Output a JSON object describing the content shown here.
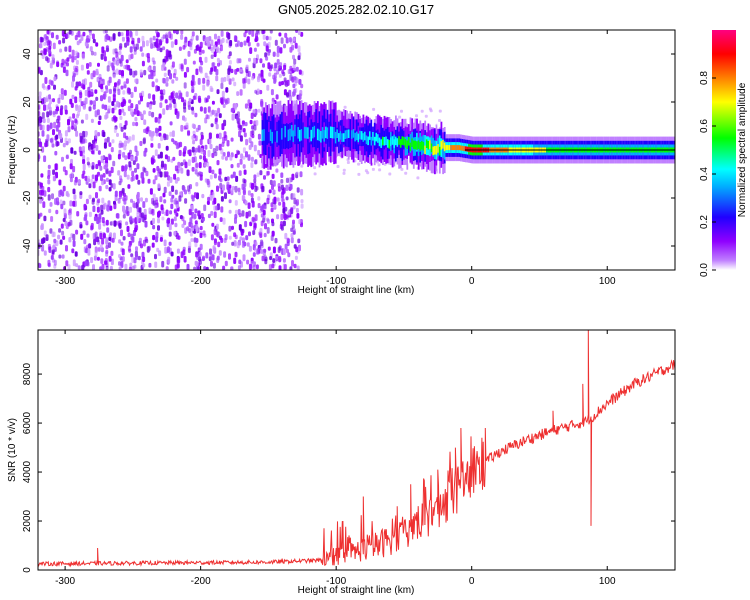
{
  "figure": {
    "title": "GN05.2025.282.02.10.G17"
  },
  "chart_data": [
    {
      "type": "heatmap",
      "xlabel": "Height of straight line (km)",
      "ylabel": "Frequency (Hz)",
      "xlim": [
        -320,
        150
      ],
      "ylim": [
        -50,
        50
      ],
      "x_ticks": [
        -300,
        -200,
        -100,
        0,
        100
      ],
      "y_ticks": [
        -40,
        -20,
        0,
        20,
        40
      ],
      "grid": false,
      "colorbar": {
        "label": "Normalized spectral amplitude",
        "range": [
          0,
          1
        ],
        "ticks": [
          "0.0",
          "0.2",
          "0.4",
          "0.6",
          "0.8"
        ],
        "colormap": "rainbow",
        "colors": [
          "#ffffff",
          "#8f00ff",
          "#0000ff",
          "#00ffff",
          "#00ff00",
          "#ffff00",
          "#ff8000",
          "#ff0000",
          "#ff0080"
        ]
      },
      "signal_track": [
        {
          "x": -150,
          "f": 6,
          "amp": 0.35
        },
        {
          "x": -130,
          "f": 7,
          "amp": 0.4
        },
        {
          "x": -110,
          "f": 7,
          "amp": 0.45
        },
        {
          "x": -90,
          "f": 6,
          "amp": 0.45
        },
        {
          "x": -70,
          "f": 4,
          "amp": 0.5
        },
        {
          "x": -50,
          "f": 3,
          "amp": 0.6
        },
        {
          "x": -30,
          "f": 1,
          "amp": 0.75
        },
        {
          "x": -10,
          "f": 1,
          "amp": 0.85
        },
        {
          "x": 0,
          "f": 0,
          "amp": 1.0
        },
        {
          "x": 30,
          "f": 0,
          "amp": 0.8
        },
        {
          "x": 60,
          "f": 0,
          "amp": 0.7
        },
        {
          "x": 90,
          "f": 0,
          "amp": 0.7
        },
        {
          "x": 120,
          "f": 0,
          "amp": 0.65
        },
        {
          "x": 150,
          "f": 0,
          "amp": 0.65
        }
      ],
      "noise_region": {
        "x_from": -320,
        "x_to": -125,
        "amp": 0.15
      }
    },
    {
      "type": "line",
      "xlabel": "Height of straight line (km)",
      "ylabel": "SNR (10 * v/v)",
      "xlim": [
        -320,
        150
      ],
      "ylim": [
        0,
        9800
      ],
      "x_ticks": [
        -300,
        -200,
        -100,
        0,
        100
      ],
      "y_ticks": [
        0,
        2000,
        4000,
        6000,
        8000
      ],
      "grid": false,
      "series": [
        {
          "color": "#ee3030",
          "trend": {
            "x": [
              -320,
              -250,
              -150,
              -110,
              -90,
              -70,
              -50,
              -30,
              -10,
              0,
              20,
              40,
              60,
              80,
              85,
              90,
              100,
              120,
              150
            ],
            "y": [
              250,
              280,
              320,
              400,
              700,
              1000,
              1500,
              2300,
              3300,
              4000,
              4800,
              5300,
              5700,
              6000,
              6100,
              6300,
              6800,
              7600,
              8400
            ]
          },
          "spikes": [
            {
              "x": -276,
              "y": 900
            },
            {
              "x": -95,
              "y": 2000
            },
            {
              "x": -80,
              "y": 3000
            },
            {
              "x": -55,
              "y": 2600
            },
            {
              "x": -45,
              "y": 3500
            },
            {
              "x": -25,
              "y": 4100
            },
            {
              "x": -12,
              "y": 5000
            },
            {
              "x": -8,
              "y": 5800
            },
            {
              "x": 10,
              "y": 5800
            },
            {
              "x": 60,
              "y": 6500
            },
            {
              "x": 82,
              "y": 7600
            },
            {
              "x": 86,
              "y": 9800
            },
            {
              "x": 88,
              "y": 1800
            }
          ]
        }
      ]
    }
  ]
}
